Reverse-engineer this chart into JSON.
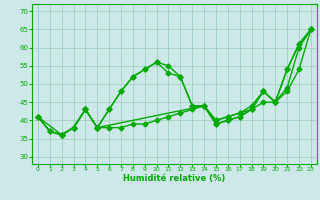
{
  "xlabel": "Humidité relative (%)",
  "xlim": [
    -0.5,
    23.5
  ],
  "ylim": [
    28,
    72
  ],
  "yticks": [
    30,
    35,
    40,
    45,
    50,
    55,
    60,
    65,
    70
  ],
  "xticks": [
    0,
    1,
    2,
    3,
    4,
    5,
    6,
    7,
    8,
    9,
    10,
    11,
    12,
    13,
    14,
    15,
    16,
    17,
    18,
    19,
    20,
    21,
    22,
    23
  ],
  "background_color": "#cce8e8",
  "grid_color": "#99ccbb",
  "line_color": "#00aa00",
  "marker": "D",
  "marker_size": 2.5,
  "line_width": 1.0,
  "lines_actual": [
    {
      "x": [
        0,
        1,
        2,
        3,
        4,
        5,
        6,
        7,
        8,
        9,
        10,
        11,
        12,
        13,
        14,
        15,
        16,
        17,
        18,
        19,
        20,
        21,
        22,
        23
      ],
      "y": [
        41,
        37,
        36,
        38,
        43,
        38,
        43,
        48,
        52,
        54,
        56,
        53,
        52,
        44,
        44,
        39,
        40,
        41,
        43,
        48,
        45,
        54,
        61,
        65
      ]
    },
    {
      "x": [
        0,
        1,
        2,
        3,
        4,
        5,
        6,
        7,
        8,
        9,
        10,
        11,
        12,
        13,
        14,
        15,
        16,
        17,
        18,
        19,
        20,
        21,
        22,
        23
      ],
      "y": [
        41,
        37,
        36,
        38,
        43,
        38,
        43,
        48,
        52,
        54,
        56,
        55,
        52,
        44,
        44,
        39,
        40,
        41,
        43,
        48,
        45,
        54,
        61,
        65
      ]
    },
    {
      "x": [
        0,
        2,
        3,
        4,
        5,
        14,
        15,
        16,
        17,
        18,
        19,
        20,
        21,
        22,
        23
      ],
      "y": [
        41,
        36,
        38,
        43,
        38,
        44,
        40,
        41,
        42,
        44,
        48,
        45,
        49,
        60,
        65
      ]
    },
    {
      "x": [
        0,
        1,
        2,
        3,
        4,
        5,
        6,
        7,
        8,
        9,
        10,
        11,
        12,
        13,
        14,
        15,
        16,
        17,
        18,
        19,
        20,
        21,
        22,
        23
      ],
      "y": [
        41,
        37,
        36,
        38,
        43,
        38,
        38,
        38,
        39,
        39,
        40,
        41,
        42,
        43,
        44,
        40,
        41,
        42,
        43,
        45,
        45,
        48,
        54,
        65
      ]
    }
  ]
}
